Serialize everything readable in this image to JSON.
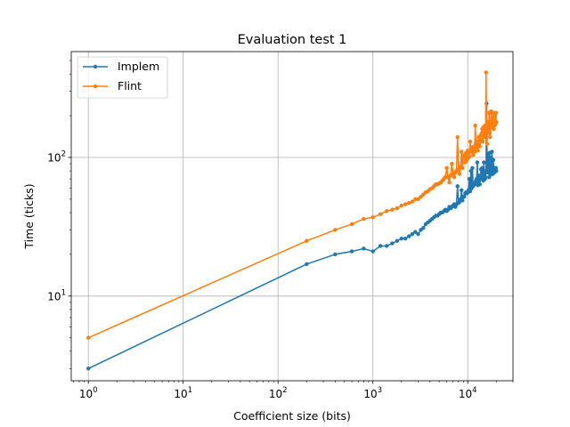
{
  "chart_data": {
    "type": "line",
    "title": "Evaluation test 1",
    "xlabel": "Coefficient size (bits)",
    "ylabel": "Time (ticks)",
    "xscale": "log",
    "yscale": "log",
    "xlim": [
      0.66,
      30000
    ],
    "ylim": [
      2.45,
      580
    ],
    "grid": true,
    "legend_position": "top-left",
    "x_ticks": [
      {
        "value": 1,
        "base": "10",
        "exp": "0"
      },
      {
        "value": 10,
        "base": "10",
        "exp": "1"
      },
      {
        "value": 100,
        "base": "10",
        "exp": "2"
      },
      {
        "value": 1000,
        "base": "10",
        "exp": "3"
      },
      {
        "value": 10000,
        "base": "10",
        "exp": "4"
      }
    ],
    "y_ticks": [
      {
        "value": 10,
        "base": "10",
        "exp": "1"
      },
      {
        "value": 100,
        "base": "10",
        "exp": "2"
      }
    ],
    "series": [
      {
        "name": "Implem",
        "color": "#1f77b4",
        "x": [
          1,
          200,
          400,
          600,
          800,
          1000,
          1200,
          1400,
          1600,
          1800,
          2000,
          2200,
          2400,
          2600,
          2800,
          3000,
          3200,
          3400,
          3600,
          3800,
          4000,
          4200,
          4400,
          4600,
          4800,
          5000,
          5200,
          5400,
          5600,
          5800,
          6000,
          6200,
          6400,
          6600,
          6800,
          7000,
          7200,
          7400,
          7600,
          7800,
          8000,
          8200,
          8400,
          8600,
          8800,
          9000,
          9200,
          9400,
          9600,
          9800,
          10000,
          10200,
          10400,
          10600,
          10800,
          11000,
          11200,
          11400,
          11600,
          11800,
          12000,
          12200,
          12400,
          12600,
          12800,
          13000,
          13200,
          13400,
          13600,
          13800,
          14000,
          14200,
          14400,
          14600,
          14800,
          15000,
          15200,
          15400,
          15600,
          15800,
          16000,
          16200,
          16400,
          16600,
          16800,
          17000,
          17200,
          17400,
          17600,
          17800,
          18000,
          18200,
          18400,
          18600,
          18800,
          19000,
          19200,
          19400,
          19600,
          19800,
          20000
        ],
        "y": [
          3,
          17,
          20,
          21,
          22,
          21,
          23,
          23,
          24,
          25,
          26,
          26,
          27,
          28,
          29,
          28,
          30,
          31,
          33,
          34,
          35,
          36,
          37,
          38,
          38,
          39,
          40,
          40,
          41,
          42,
          41,
          42,
          44,
          43,
          44,
          45,
          46,
          44,
          46,
          62,
          47,
          48,
          50,
          58,
          49,
          52,
          52,
          55,
          56,
          55,
          56,
          58,
          70,
          57,
          80,
          60,
          84,
          62,
          63,
          64,
          66,
          68,
          70,
          92,
          63,
          68,
          74,
          64,
          70,
          82,
          70,
          84,
          72,
          68,
          92,
          76,
          70,
          72,
          80,
          245,
          78,
          88,
          104,
          84,
          72,
          108,
          80,
          75,
          100,
          78,
          110,
          84,
          76,
          96,
          80,
          82,
          78,
          84,
          80,
          84,
          80
        ]
      },
      {
        "name": "Flint",
        "color": "#ff7f0e",
        "x": [
          1,
          200,
          400,
          600,
          800,
          1000,
          1200,
          1400,
          1600,
          1800,
          2000,
          2200,
          2400,
          2600,
          2800,
          3000,
          3200,
          3400,
          3600,
          3800,
          4000,
          4200,
          4400,
          4600,
          4800,
          5000,
          5200,
          5400,
          5600,
          5800,
          6000,
          6200,
          6400,
          6600,
          6800,
          7000,
          7200,
          7400,
          7600,
          7800,
          8000,
          8200,
          8400,
          8600,
          8800,
          9000,
          9200,
          9400,
          9600,
          9800,
          10000,
          10200,
          10400,
          10600,
          10800,
          11000,
          11200,
          11400,
          11600,
          11800,
          12000,
          12200,
          12400,
          12600,
          12800,
          13000,
          13200,
          13400,
          13600,
          13800,
          14000,
          14200,
          14400,
          14600,
          14800,
          15000,
          15200,
          15400,
          15600,
          15800,
          16000,
          16200,
          16400,
          16600,
          16800,
          17000,
          17200,
          17400,
          17600,
          17800,
          18000,
          18200,
          18400,
          18600,
          18800,
          19000,
          19200,
          19400,
          19600,
          19800,
          20000
        ],
        "y": [
          5,
          25,
          30,
          33,
          36,
          37,
          39,
          41,
          42,
          43,
          45,
          46,
          47,
          48,
          50,
          50,
          52,
          54,
          56,
          57,
          59,
          60,
          62,
          64,
          64,
          65,
          66,
          68,
          70,
          72,
          84,
          72,
          66,
          74,
          90,
          76,
          72,
          78,
          80,
          140,
          82,
          76,
          86,
          110,
          84,
          100,
          104,
          92,
          108,
          96,
          112,
          100,
          102,
          130,
          110,
          112,
          118,
          104,
          120,
          110,
          170,
          126,
          115,
          130,
          112,
          140,
          126,
          120,
          135,
          145,
          150,
          160,
          130,
          165,
          140,
          150,
          170,
          145,
          410,
          160,
          125,
          165,
          180,
          155,
          210,
          150,
          140,
          175,
          215,
          165,
          195,
          170,
          210,
          175,
          160,
          190,
          170,
          200,
          175,
          210,
          180
        ]
      }
    ]
  }
}
